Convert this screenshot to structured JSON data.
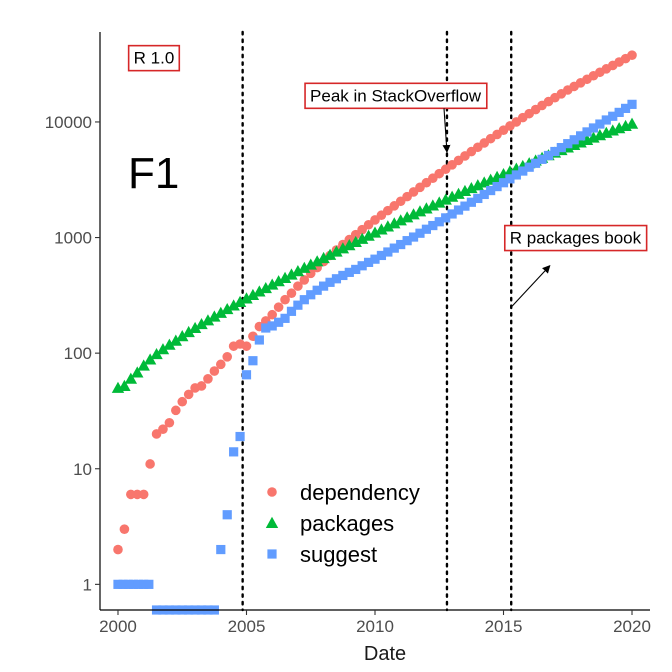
{
  "chart_data": {
    "type": "scatter",
    "panel_label": "F1",
    "xlabel": "Date",
    "ylabel": "",
    "y_scale": "log10",
    "xlim": [
      1999.3,
      2020.7
    ],
    "ylim": [
      0.6,
      60000
    ],
    "x_ticks": [
      {
        "value": 2000,
        "label": "2000"
      },
      {
        "value": 2005,
        "label": "2005"
      },
      {
        "value": 2010,
        "label": "2010"
      },
      {
        "value": 2015,
        "label": "2015"
      },
      {
        "value": 2020,
        "label": "2020"
      }
    ],
    "y_ticks": [
      {
        "value": 1,
        "label": "1"
      },
      {
        "value": 10,
        "label": "10"
      },
      {
        "value": 100,
        "label": "100"
      },
      {
        "value": 1000,
        "label": "1000"
      },
      {
        "value": 10000,
        "label": "10000"
      }
    ],
    "grid": false,
    "legend": {
      "position": "bottom-left-inside"
    },
    "vlines": [
      {
        "x": 2004.85,
        "style": "dotted"
      },
      {
        "x": 2012.8,
        "style": "dotted"
      },
      {
        "x": 2015.3,
        "style": "dotted"
      }
    ],
    "annotations": [
      {
        "text": "R 1.0",
        "x": 2001.4,
        "y": 36000
      },
      {
        "text": "Peak in StackOverflow",
        "x": 2010.8,
        "y": 17000,
        "arrow_to": [
          2012.8,
          5500
        ]
      },
      {
        "text": "R packages book",
        "x": 2017.8,
        "y": 1000,
        "arrow_from": [
          2015.3,
          250
        ],
        "arrow_to": [
          2016.8,
          570
        ]
      }
    ],
    "series": [
      {
        "name": "dependency",
        "marker": "circle",
        "color": "#F8766D",
        "points": [
          [
            2000.0,
            2
          ],
          [
            2000.25,
            3
          ],
          [
            2000.5,
            6
          ],
          [
            2000.75,
            6
          ],
          [
            2001.0,
            6
          ],
          [
            2001.25,
            11
          ],
          [
            2001.5,
            20
          ],
          [
            2001.75,
            22
          ],
          [
            2002.0,
            25
          ],
          [
            2002.25,
            32
          ],
          [
            2002.5,
            38
          ],
          [
            2002.75,
            44
          ],
          [
            2003.0,
            50
          ],
          [
            2003.25,
            52
          ],
          [
            2003.5,
            60
          ],
          [
            2003.75,
            70
          ],
          [
            2004.0,
            80
          ],
          [
            2004.25,
            93
          ],
          [
            2004.5,
            115
          ],
          [
            2004.75,
            120
          ],
          [
            2005.0,
            115
          ],
          [
            2005.25,
            140
          ],
          [
            2005.5,
            170
          ],
          [
            2005.75,
            190
          ],
          [
            2006.0,
            215
          ],
          [
            2006.25,
            250
          ],
          [
            2006.5,
            290
          ],
          [
            2006.75,
            330
          ],
          [
            2007.0,
            380
          ],
          [
            2007.25,
            430
          ],
          [
            2007.5,
            490
          ],
          [
            2007.75,
            550
          ],
          [
            2008.0,
            620
          ],
          [
            2008.25,
            700
          ],
          [
            2008.5,
            780
          ],
          [
            2008.75,
            870
          ],
          [
            2009.0,
            960
          ],
          [
            2009.25,
            1060
          ],
          [
            2009.5,
            1170
          ],
          [
            2009.75,
            1290
          ],
          [
            2010.0,
            1420
          ],
          [
            2010.25,
            1560
          ],
          [
            2010.5,
            1710
          ],
          [
            2010.75,
            1880
          ],
          [
            2011.0,
            2060
          ],
          [
            2011.25,
            2260
          ],
          [
            2011.5,
            2480
          ],
          [
            2011.75,
            2720
          ],
          [
            2012.0,
            2980
          ],
          [
            2012.25,
            3260
          ],
          [
            2012.5,
            3570
          ],
          [
            2012.75,
            3900
          ],
          [
            2013.0,
            4260
          ],
          [
            2013.25,
            4650
          ],
          [
            2013.5,
            5080
          ],
          [
            2013.75,
            5540
          ],
          [
            2014.0,
            6040
          ],
          [
            2014.25,
            6580
          ],
          [
            2014.5,
            7170
          ],
          [
            2014.75,
            7800
          ],
          [
            2015.0,
            8490
          ],
          [
            2015.25,
            9230
          ],
          [
            2015.5,
            10000
          ],
          [
            2015.75,
            10900
          ],
          [
            2016.0,
            11800
          ],
          [
            2016.25,
            12800
          ],
          [
            2016.5,
            13900
          ],
          [
            2016.75,
            15000
          ],
          [
            2017.0,
            16200
          ],
          [
            2017.25,
            17500
          ],
          [
            2017.5,
            18900
          ],
          [
            2017.75,
            20300
          ],
          [
            2018.0,
            21800
          ],
          [
            2018.25,
            23400
          ],
          [
            2018.5,
            25100
          ],
          [
            2018.75,
            26900
          ],
          [
            2019.0,
            28800
          ],
          [
            2019.25,
            30800
          ],
          [
            2019.5,
            33000
          ],
          [
            2019.75,
            35300
          ],
          [
            2020.0,
            37800
          ]
        ]
      },
      {
        "name": "packages",
        "marker": "triangle",
        "color": "#00BA38",
        "points": [
          [
            2000.0,
            50
          ],
          [
            2000.25,
            52
          ],
          [
            2000.5,
            60
          ],
          [
            2000.75,
            68
          ],
          [
            2001.0,
            78
          ],
          [
            2001.25,
            88
          ],
          [
            2001.5,
            98
          ],
          [
            2001.75,
            108
          ],
          [
            2002.0,
            118
          ],
          [
            2002.25,
            128
          ],
          [
            2002.5,
            140
          ],
          [
            2002.75,
            152
          ],
          [
            2003.0,
            165
          ],
          [
            2003.25,
            178
          ],
          [
            2003.5,
            192
          ],
          [
            2003.75,
            207
          ],
          [
            2004.0,
            223
          ],
          [
            2004.25,
            240
          ],
          [
            2004.5,
            258
          ],
          [
            2004.75,
            277
          ],
          [
            2005.0,
            297
          ],
          [
            2005.25,
            318
          ],
          [
            2005.5,
            341
          ],
          [
            2005.75,
            365
          ],
          [
            2006.0,
            391
          ],
          [
            2006.25,
            418
          ],
          [
            2006.5,
            447
          ],
          [
            2006.75,
            478
          ],
          [
            2007.0,
            511
          ],
          [
            2007.25,
            546
          ],
          [
            2007.5,
            583
          ],
          [
            2007.75,
            622
          ],
          [
            2008.0,
            664
          ],
          [
            2008.25,
            708
          ],
          [
            2008.5,
            755
          ],
          [
            2008.75,
            805
          ],
          [
            2009.0,
            858
          ],
          [
            2009.25,
            914
          ],
          [
            2009.5,
            973
          ],
          [
            2009.75,
            1036
          ],
          [
            2010.0,
            1102
          ],
          [
            2010.25,
            1172
          ],
          [
            2010.5,
            1246
          ],
          [
            2010.75,
            1324
          ],
          [
            2011.0,
            1406
          ],
          [
            2011.25,
            1493
          ],
          [
            2011.5,
            1585
          ],
          [
            2011.75,
            1682
          ],
          [
            2012.0,
            1784
          ],
          [
            2012.25,
            1892
          ],
          [
            2012.5,
            2006
          ],
          [
            2012.75,
            2126
          ],
          [
            2013.0,
            2252
          ],
          [
            2013.25,
            2385
          ],
          [
            2013.5,
            2525
          ],
          [
            2013.75,
            2672
          ],
          [
            2014.0,
            2827
          ],
          [
            2014.25,
            2990
          ],
          [
            2014.5,
            3161
          ],
          [
            2014.75,
            3341
          ],
          [
            2015.0,
            3530
          ],
          [
            2015.25,
            3729
          ],
          [
            2015.5,
            3938
          ],
          [
            2015.75,
            4157
          ],
          [
            2016.0,
            4387
          ],
          [
            2016.25,
            4628
          ],
          [
            2016.5,
            4880
          ],
          [
            2016.75,
            5143
          ],
          [
            2017.0,
            5418
          ],
          [
            2017.25,
            5704
          ],
          [
            2017.5,
            6002
          ],
          [
            2017.75,
            6312
          ],
          [
            2018.0,
            6634
          ],
          [
            2018.25,
            6968
          ],
          [
            2018.5,
            7314
          ],
          [
            2018.75,
            7672
          ],
          [
            2019.0,
            8042
          ],
          [
            2019.25,
            8424
          ],
          [
            2019.5,
            8818
          ],
          [
            2019.75,
            9223
          ],
          [
            2020.0,
            9640
          ]
        ]
      },
      {
        "name": "suggest",
        "marker": "square",
        "color": "#619CFF",
        "points": [
          [
            2000.0,
            1
          ],
          [
            2000.2,
            1
          ],
          [
            2000.4,
            1
          ],
          [
            2000.6,
            1
          ],
          [
            2000.8,
            1
          ],
          [
            2001.0,
            1
          ],
          [
            2001.2,
            1
          ],
          [
            2001.5,
            0.6
          ],
          [
            2001.75,
            0.6
          ],
          [
            2002.0,
            0.6
          ],
          [
            2002.25,
            0.6
          ],
          [
            2002.5,
            0.6
          ],
          [
            2002.75,
            0.6
          ],
          [
            2003.0,
            0.6
          ],
          [
            2003.25,
            0.6
          ],
          [
            2003.5,
            0.6
          ],
          [
            2003.75,
            0.6
          ],
          [
            2004.0,
            2
          ],
          [
            2004.25,
            4
          ],
          [
            2004.5,
            14
          ],
          [
            2004.75,
            19
          ],
          [
            2005.0,
            65
          ],
          [
            2005.25,
            86
          ],
          [
            2005.5,
            130
          ],
          [
            2005.75,
            165
          ],
          [
            2006.0,
            172
          ],
          [
            2006.25,
            185
          ],
          [
            2006.5,
            200
          ],
          [
            2006.75,
            230
          ],
          [
            2007.0,
            260
          ],
          [
            2007.25,
            290
          ],
          [
            2007.5,
            320
          ],
          [
            2007.75,
            350
          ],
          [
            2008.0,
            380
          ],
          [
            2008.25,
            410
          ],
          [
            2008.5,
            440
          ],
          [
            2008.75,
            470
          ],
          [
            2009.0,
            500
          ],
          [
            2009.25,
            530
          ],
          [
            2009.5,
            570
          ],
          [
            2009.75,
            610
          ],
          [
            2010.0,
            650
          ],
          [
            2010.25,
            700
          ],
          [
            2010.5,
            750
          ],
          [
            2010.75,
            810
          ],
          [
            2011.0,
            870
          ],
          [
            2011.25,
            940
          ],
          [
            2011.5,
            1010
          ],
          [
            2011.75,
            1090
          ],
          [
            2012.0,
            1180
          ],
          [
            2012.25,
            1270
          ],
          [
            2012.5,
            1370
          ],
          [
            2012.75,
            1480
          ],
          [
            2013.0,
            1600
          ],
          [
            2013.25,
            1730
          ],
          [
            2013.5,
            1870
          ],
          [
            2013.75,
            2020
          ],
          [
            2014.0,
            2180
          ],
          [
            2014.25,
            2360
          ],
          [
            2014.5,
            2550
          ],
          [
            2014.75,
            2760
          ],
          [
            2015.0,
            2980
          ],
          [
            2015.25,
            3220
          ],
          [
            2015.5,
            3480
          ],
          [
            2015.75,
            3760
          ],
          [
            2016.0,
            4060
          ],
          [
            2016.25,
            4390
          ],
          [
            2016.5,
            4750
          ],
          [
            2016.75,
            5130
          ],
          [
            2017.0,
            5550
          ],
          [
            2017.25,
            6000
          ],
          [
            2017.5,
            6490
          ],
          [
            2017.75,
            7010
          ],
          [
            2018.0,
            7580
          ],
          [
            2018.25,
            8200
          ],
          [
            2018.5,
            8870
          ],
          [
            2018.75,
            9590
          ],
          [
            2019.0,
            10400
          ],
          [
            2019.25,
            11200
          ],
          [
            2019.5,
            12100
          ],
          [
            2019.75,
            13100
          ],
          [
            2020.0,
            14200
          ]
        ]
      }
    ]
  }
}
